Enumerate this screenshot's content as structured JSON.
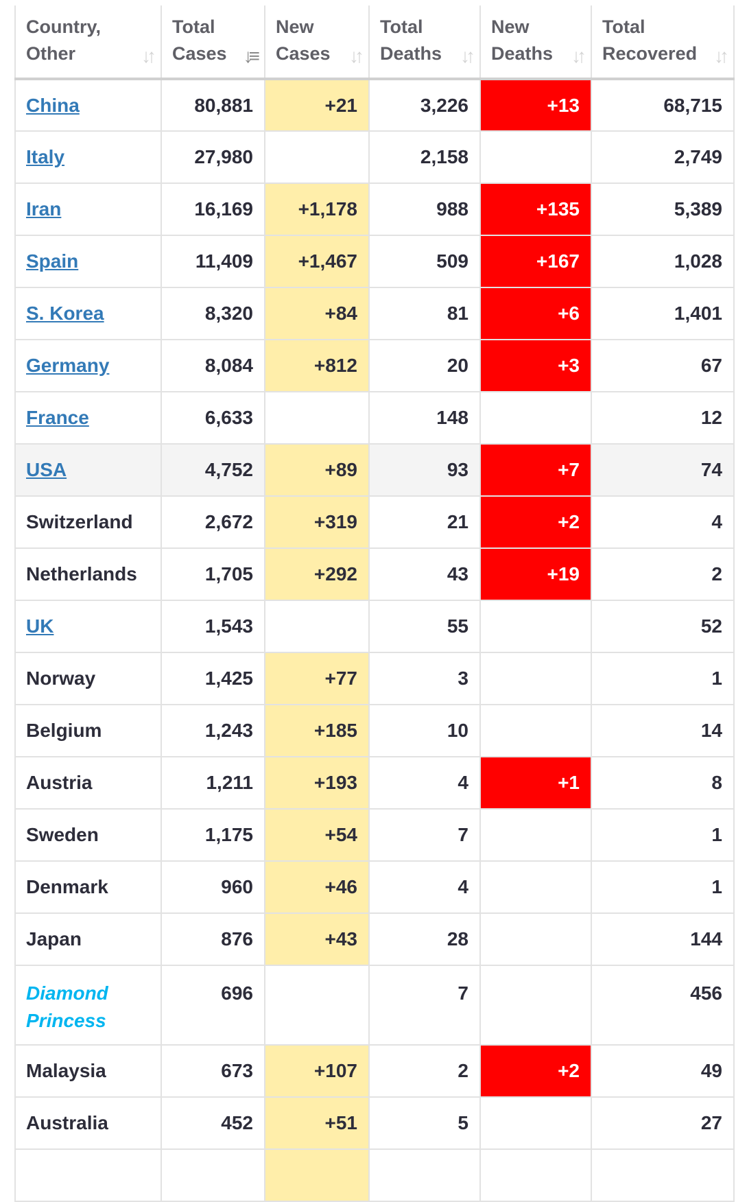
{
  "colors": {
    "new_cases_bg": "#ffeeaa",
    "new_deaths_bg": "#ff0000",
    "link": "#337ab7",
    "ship": "#00b5f0",
    "highlight_row": "#f4f4f4"
  },
  "headers": [
    {
      "line1": "Country,",
      "line2": "Other",
      "sort_icon": "sort-icon",
      "active": false
    },
    {
      "line1": "Total",
      "line2": "Cases",
      "sort_icon": "sort-desc-icon",
      "active": true
    },
    {
      "line1": "New",
      "line2": "Cases",
      "sort_icon": "sort-icon",
      "active": false
    },
    {
      "line1": "Total",
      "line2": "Deaths",
      "sort_icon": "sort-icon",
      "active": false
    },
    {
      "line1": "New",
      "line2": "Deaths",
      "sort_icon": "sort-icon",
      "active": false
    },
    {
      "line1": "Total",
      "line2": "Recovered",
      "sort_icon": "sort-icon",
      "active": false
    }
  ],
  "rows": [
    {
      "country": "China",
      "link": true,
      "total_cases": "80,881",
      "new_cases": "+21",
      "total_deaths": "3,226",
      "new_deaths": "+13",
      "total_recovered": "68,715"
    },
    {
      "country": "Italy",
      "link": true,
      "total_cases": "27,980",
      "new_cases": "",
      "total_deaths": "2,158",
      "new_deaths": "",
      "total_recovered": "2,749"
    },
    {
      "country": "Iran",
      "link": true,
      "total_cases": "16,169",
      "new_cases": "+1,178",
      "total_deaths": "988",
      "new_deaths": "+135",
      "total_recovered": "5,389"
    },
    {
      "country": "Spain",
      "link": true,
      "total_cases": "11,409",
      "new_cases": "+1,467",
      "total_deaths": "509",
      "new_deaths": "+167",
      "total_recovered": "1,028"
    },
    {
      "country": "S. Korea",
      "link": true,
      "total_cases": "8,320",
      "new_cases": "+84",
      "total_deaths": "81",
      "new_deaths": "+6",
      "total_recovered": "1,401"
    },
    {
      "country": "Germany",
      "link": true,
      "total_cases": "8,084",
      "new_cases": "+812",
      "total_deaths": "20",
      "new_deaths": "+3",
      "total_recovered": "67"
    },
    {
      "country": "France",
      "link": true,
      "total_cases": "6,633",
      "new_cases": "",
      "total_deaths": "148",
      "new_deaths": "",
      "total_recovered": "12"
    },
    {
      "country": "USA",
      "link": true,
      "highlight": true,
      "total_cases": "4,752",
      "new_cases": "+89",
      "total_deaths": "93",
      "new_deaths": "+7",
      "total_recovered": "74"
    },
    {
      "country": "Switzerland",
      "total_cases": "2,672",
      "new_cases": "+319",
      "total_deaths": "21",
      "new_deaths": "+2",
      "total_recovered": "4"
    },
    {
      "country": "Netherlands",
      "total_cases": "1,705",
      "new_cases": "+292",
      "total_deaths": "43",
      "new_deaths": "+19",
      "total_recovered": "2"
    },
    {
      "country": "UK",
      "link": true,
      "total_cases": "1,543",
      "new_cases": "",
      "total_deaths": "55",
      "new_deaths": "",
      "total_recovered": "52"
    },
    {
      "country": "Norway",
      "total_cases": "1,425",
      "new_cases": "+77",
      "total_deaths": "3",
      "new_deaths": "",
      "total_recovered": "1"
    },
    {
      "country": "Belgium",
      "total_cases": "1,243",
      "new_cases": "+185",
      "total_deaths": "10",
      "new_deaths": "",
      "total_recovered": "14"
    },
    {
      "country": "Austria",
      "total_cases": "1,211",
      "new_cases": "+193",
      "total_deaths": "4",
      "new_deaths": "+1",
      "total_recovered": "8"
    },
    {
      "country": "Sweden",
      "total_cases": "1,175",
      "new_cases": "+54",
      "total_deaths": "7",
      "new_deaths": "",
      "total_recovered": "1"
    },
    {
      "country": "Denmark",
      "total_cases": "960",
      "new_cases": "+46",
      "total_deaths": "4",
      "new_deaths": "",
      "total_recovered": "1"
    },
    {
      "country": "Japan",
      "total_cases": "876",
      "new_cases": "+43",
      "total_deaths": "28",
      "new_deaths": "",
      "total_recovered": "144"
    },
    {
      "country": "Diamond Princess",
      "ship": true,
      "total_cases": "696",
      "new_cases": "",
      "total_deaths": "7",
      "new_deaths": "",
      "total_recovered": "456"
    },
    {
      "country": "Malaysia",
      "total_cases": "673",
      "new_cases": "+107",
      "total_deaths": "2",
      "new_deaths": "+2",
      "total_recovered": "49"
    },
    {
      "country": "Australia",
      "total_cases": "452",
      "new_cases": "+51",
      "total_deaths": "5",
      "new_deaths": "",
      "total_recovered": "27"
    },
    {
      "country": "",
      "total_cases": "",
      "new_cases": "",
      "total_deaths": "",
      "new_deaths": "",
      "total_recovered": ""
    }
  ]
}
